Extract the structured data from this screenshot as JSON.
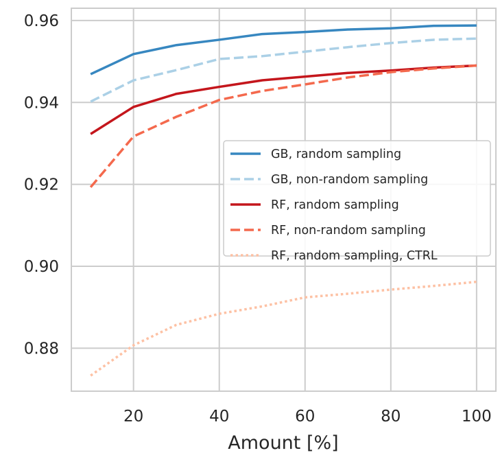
{
  "chart_data": {
    "type": "line",
    "title": "",
    "xlabel": "Amount [%]",
    "ylabel": "",
    "xlim": [
      5.5,
      104.5
    ],
    "ylim": [
      0.8695,
      0.963
    ],
    "xticks": [
      20,
      40,
      60,
      80,
      100
    ],
    "yticks": [
      0.88,
      0.9,
      0.92,
      0.94,
      0.96
    ],
    "xtick_labels": [
      "20",
      "40",
      "60",
      "80",
      "100"
    ],
    "ytick_labels": [
      "0.88",
      "0.90",
      "0.92",
      "0.94",
      "0.96"
    ],
    "grid": true,
    "legend_position": "center-right",
    "x": [
      10,
      20,
      30,
      40,
      50,
      60,
      70,
      80,
      90,
      100
    ],
    "series": [
      {
        "name": "GB, random sampling",
        "color": "#3787c0",
        "dash": "solid",
        "values": [
          0.9469,
          0.9518,
          0.954,
          0.9553,
          0.9567,
          0.9572,
          0.9578,
          0.9581,
          0.9587,
          0.9588
        ]
      },
      {
        "name": "GB, non-random sampling",
        "color": "#abd0e6",
        "dash": "dashed",
        "values": [
          0.9402,
          0.9454,
          0.9479,
          0.9506,
          0.9513,
          0.9524,
          0.9535,
          0.9545,
          0.9553,
          0.9556
        ]
      },
      {
        "name": "RF, random sampling",
        "color": "#c4161c",
        "dash": "solid",
        "values": [
          0.9323,
          0.9389,
          0.9421,
          0.9438,
          0.9454,
          0.9463,
          0.9472,
          0.9478,
          0.9485,
          0.949
        ]
      },
      {
        "name": "RF, non-random sampling",
        "color": "#f4694d",
        "dash": "dashed",
        "values": [
          0.9193,
          0.9317,
          0.9365,
          0.9406,
          0.9428,
          0.9444,
          0.9461,
          0.9474,
          0.9483,
          0.949
        ]
      },
      {
        "name": "RF, random sampling, CTRL",
        "color": "#fdc1a4",
        "dash": "dotted",
        "values": [
          0.8733,
          0.8807,
          0.8857,
          0.8884,
          0.8902,
          0.8924,
          0.8933,
          0.8943,
          0.8952,
          0.8962
        ]
      }
    ]
  }
}
